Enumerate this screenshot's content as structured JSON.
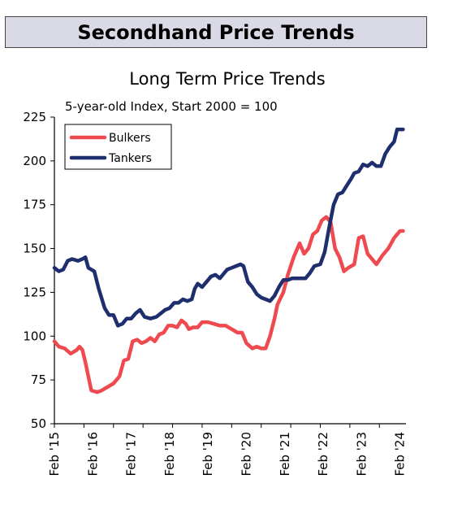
{
  "banner": {
    "title": "Secondhand Price Trends"
  },
  "chart_data": {
    "type": "line",
    "title": "Long Term Price Trends",
    "subtitle": "5-year-old Index, Start 2000 = 100",
    "xlabel": "",
    "ylabel": "",
    "ylim": [
      50,
      225
    ],
    "yticks": [
      50,
      75,
      100,
      125,
      150,
      175,
      200,
      225
    ],
    "xticks": [
      "Feb '15",
      "Feb '16",
      "Feb '17",
      "Feb '18",
      "Feb '19",
      "Feb '20",
      "Feb '21",
      "Feb '22",
      "Feb '23",
      "Feb '24"
    ],
    "legend_position": "top-left",
    "grid": false,
    "series": [
      {
        "name": "Bulkers",
        "color": "#ee4a50",
        "points": [
          [
            0,
            97
          ],
          [
            0.15,
            94
          ],
          [
            0.35,
            93
          ],
          [
            0.55,
            90
          ],
          [
            0.75,
            92
          ],
          [
            0.85,
            94
          ],
          [
            0.95,
            92
          ],
          [
            1.05,
            85
          ],
          [
            1.15,
            77
          ],
          [
            1.25,
            69
          ],
          [
            1.45,
            68
          ],
          [
            1.6,
            69
          ],
          [
            1.8,
            71
          ],
          [
            2.0,
            73
          ],
          [
            2.2,
            77
          ],
          [
            2.35,
            86
          ],
          [
            2.5,
            87
          ],
          [
            2.65,
            97
          ],
          [
            2.8,
            98
          ],
          [
            2.95,
            96
          ],
          [
            3.1,
            97
          ],
          [
            3.25,
            99
          ],
          [
            3.4,
            97
          ],
          [
            3.55,
            101
          ],
          [
            3.7,
            102
          ],
          [
            3.85,
            106
          ],
          [
            4.0,
            106
          ],
          [
            4.15,
            105
          ],
          [
            4.3,
            109
          ],
          [
            4.45,
            107
          ],
          [
            4.55,
            104
          ],
          [
            4.7,
            105
          ],
          [
            4.85,
            105
          ],
          [
            5.0,
            108
          ],
          [
            5.2,
            108
          ],
          [
            5.4,
            107
          ],
          [
            5.6,
            106
          ],
          [
            5.8,
            106
          ],
          [
            6.0,
            104
          ],
          [
            6.2,
            102
          ],
          [
            6.35,
            102
          ],
          [
            6.5,
            96
          ],
          [
            6.7,
            93
          ],
          [
            6.85,
            94
          ],
          [
            7.0,
            93
          ],
          [
            7.15,
            93
          ],
          [
            7.3,
            100
          ],
          [
            7.45,
            110
          ],
          [
            7.55,
            118
          ],
          [
            7.75,
            125
          ],
          [
            7.9,
            135
          ],
          [
            8.1,
            145
          ],
          [
            8.3,
            153
          ],
          [
            8.45,
            147
          ],
          [
            8.6,
            150
          ],
          [
            8.75,
            158
          ],
          [
            8.9,
            160
          ],
          [
            9.05,
            166
          ],
          [
            9.2,
            168
          ],
          [
            9.35,
            165
          ],
          [
            9.5,
            150
          ],
          [
            9.65,
            145
          ],
          [
            9.8,
            137
          ],
          [
            9.95,
            139
          ],
          [
            10.15,
            141
          ],
          [
            10.3,
            156
          ],
          [
            10.45,
            157
          ],
          [
            10.6,
            147
          ],
          [
            10.75,
            144
          ],
          [
            10.9,
            141
          ],
          [
            11.1,
            146
          ],
          [
            11.3,
            150
          ],
          [
            11.5,
            156
          ],
          [
            11.7,
            160
          ],
          [
            11.8,
            160
          ]
        ]
      },
      {
        "name": "Tankers",
        "color": "#1f2f6e",
        "points": [
          [
            0,
            139
          ],
          [
            0.15,
            137
          ],
          [
            0.3,
            138
          ],
          [
            0.45,
            143
          ],
          [
            0.6,
            144
          ],
          [
            0.8,
            143
          ],
          [
            0.95,
            144
          ],
          [
            1.05,
            145
          ],
          [
            1.15,
            139
          ],
          [
            1.35,
            137
          ],
          [
            1.5,
            127
          ],
          [
            1.7,
            116
          ],
          [
            1.85,
            112
          ],
          [
            2.0,
            112
          ],
          [
            2.15,
            106
          ],
          [
            2.3,
            107
          ],
          [
            2.45,
            110
          ],
          [
            2.6,
            110
          ],
          [
            2.75,
            113
          ],
          [
            2.9,
            115
          ],
          [
            3.05,
            111
          ],
          [
            3.25,
            110
          ],
          [
            3.45,
            111
          ],
          [
            3.6,
            113
          ],
          [
            3.75,
            115
          ],
          [
            3.9,
            116
          ],
          [
            4.05,
            119
          ],
          [
            4.2,
            119
          ],
          [
            4.35,
            121
          ],
          [
            4.5,
            120
          ],
          [
            4.65,
            121
          ],
          [
            4.75,
            127
          ],
          [
            4.85,
            130
          ],
          [
            5.0,
            128
          ],
          [
            5.15,
            131
          ],
          [
            5.3,
            134
          ],
          [
            5.45,
            135
          ],
          [
            5.6,
            133
          ],
          [
            5.75,
            136
          ],
          [
            5.85,
            138
          ],
          [
            6.0,
            139
          ],
          [
            6.15,
            140
          ],
          [
            6.3,
            141
          ],
          [
            6.4,
            140
          ],
          [
            6.55,
            131
          ],
          [
            6.7,
            128
          ],
          [
            6.85,
            124
          ],
          [
            7.0,
            122
          ],
          [
            7.15,
            121
          ],
          [
            7.3,
            120
          ],
          [
            7.45,
            123
          ],
          [
            7.6,
            128
          ],
          [
            7.75,
            132
          ],
          [
            7.9,
            132
          ],
          [
            8.05,
            133
          ],
          [
            8.2,
            133
          ],
          [
            8.35,
            133
          ],
          [
            8.5,
            133
          ],
          [
            8.65,
            136
          ],
          [
            8.8,
            140
          ],
          [
            9.0,
            141
          ],
          [
            9.15,
            148
          ],
          [
            9.3,
            162
          ],
          [
            9.45,
            175
          ],
          [
            9.6,
            181
          ],
          [
            9.75,
            182
          ],
          [
            9.9,
            186
          ],
          [
            10.05,
            190
          ],
          [
            10.15,
            193
          ],
          [
            10.3,
            194
          ],
          [
            10.45,
            198
          ],
          [
            10.6,
            197
          ],
          [
            10.75,
            199
          ],
          [
            10.9,
            197
          ],
          [
            11.05,
            197
          ],
          [
            11.2,
            204
          ],
          [
            11.35,
            208
          ],
          [
            11.5,
            211
          ],
          [
            11.6,
            218
          ],
          [
            11.7,
            218
          ],
          [
            11.8,
            218
          ]
        ]
      }
    ]
  }
}
